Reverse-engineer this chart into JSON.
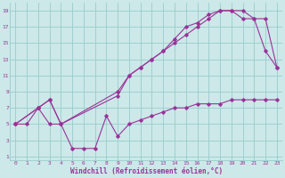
{
  "xlabel": "Windchill (Refroidissement éolien,°C)",
  "background_color": "#cce8e8",
  "grid_color": "#99cccc",
  "line_color": "#993399",
  "xlim": [
    -0.5,
    23.5
  ],
  "ylim": [
    0.5,
    20
  ],
  "xticks": [
    0,
    1,
    2,
    3,
    4,
    5,
    6,
    7,
    8,
    9,
    10,
    11,
    12,
    13,
    14,
    15,
    16,
    17,
    18,
    19,
    20,
    21,
    22,
    23
  ],
  "yticks": [
    1,
    3,
    5,
    7,
    9,
    11,
    13,
    15,
    17,
    19
  ],
  "line1_x": [
    0,
    1,
    2,
    3,
    4,
    5,
    6,
    7,
    8,
    9,
    10,
    11,
    12,
    13,
    14,
    15,
    16,
    17,
    18,
    19,
    20,
    21,
    22,
    23
  ],
  "line1_y": [
    5,
    5,
    7,
    5,
    5,
    2,
    2,
    2,
    6,
    3.5,
    5,
    5.5,
    6,
    6.5,
    7,
    7,
    7.5,
    7.5,
    7.5,
    8,
    8,
    8,
    8,
    8
  ],
  "line2_x": [
    0,
    2,
    3,
    4,
    9,
    10,
    11,
    12,
    13,
    14,
    15,
    16,
    17,
    18,
    19,
    20,
    21,
    22,
    23
  ],
  "line2_y": [
    5,
    7,
    8,
    5,
    9,
    11,
    12,
    13,
    14,
    15,
    16,
    17,
    18,
    19,
    19,
    18,
    18,
    14,
    12
  ],
  "line3_x": [
    0,
    2,
    3,
    4,
    9,
    10,
    11,
    12,
    13,
    14,
    15,
    16,
    17,
    18,
    19,
    20,
    21,
    22,
    23
  ],
  "line3_y": [
    5,
    7,
    8,
    5,
    8.5,
    11,
    12,
    13,
    14,
    15.5,
    17,
    17.5,
    18.5,
    19,
    19,
    19,
    18,
    18,
    12
  ]
}
